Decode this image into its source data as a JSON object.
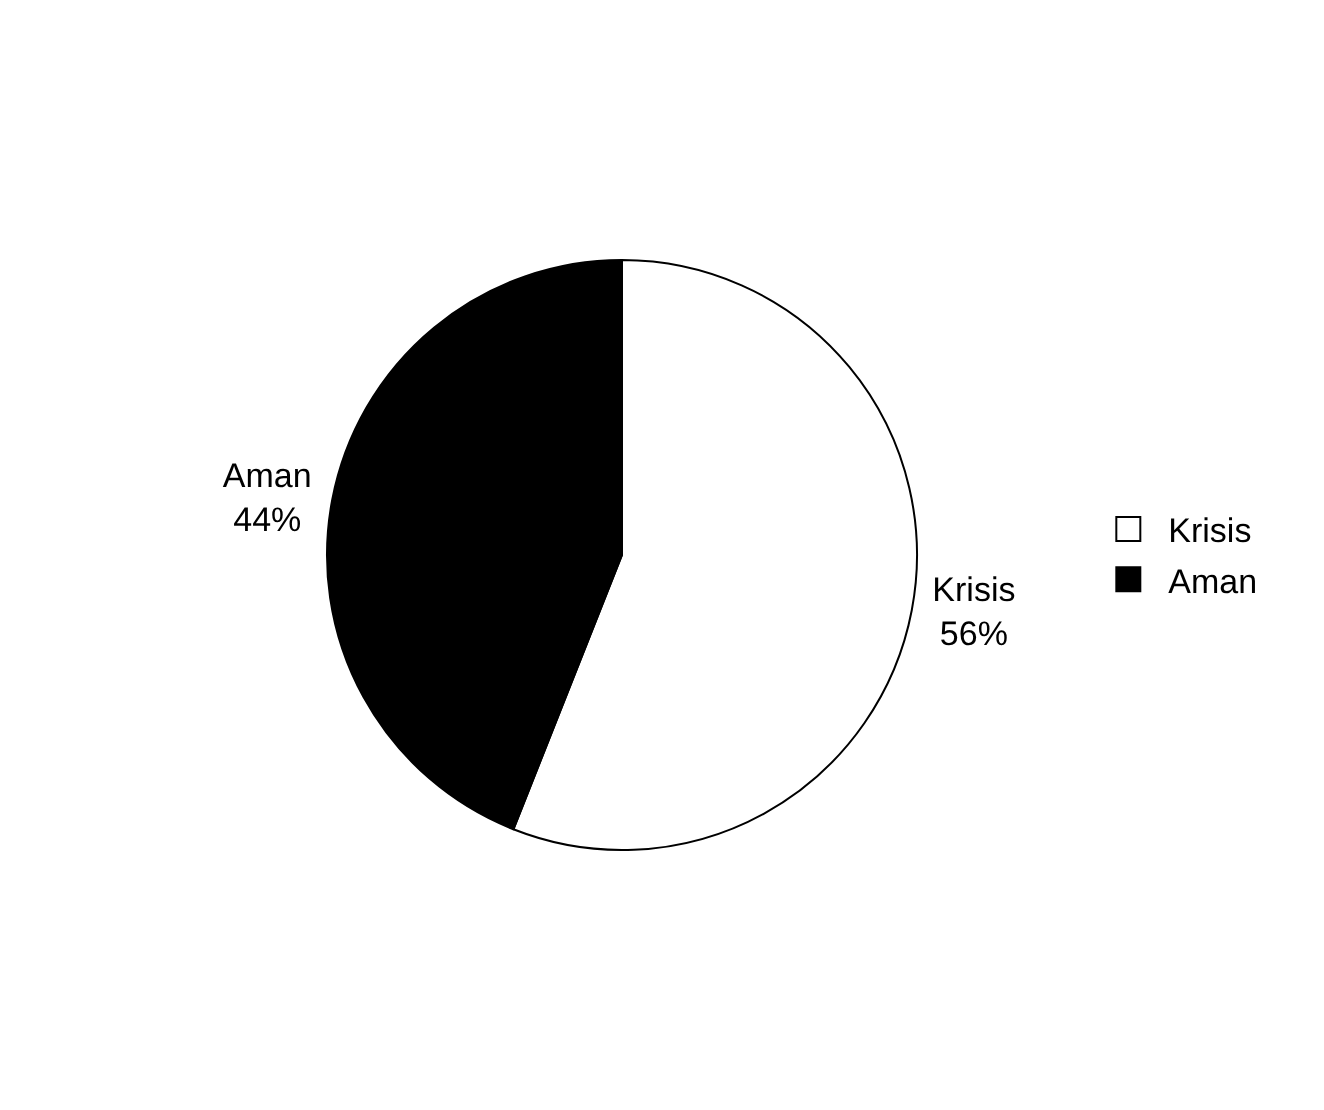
{
  "chart_data": {
    "type": "pie",
    "categories": [
      "Krisis",
      "Aman"
    ],
    "values": [
      56,
      44
    ],
    "colors": [
      "#ffffff",
      "#000000"
    ],
    "value_labels": [
      "56%",
      "44%"
    ],
    "legend": "right"
  }
}
